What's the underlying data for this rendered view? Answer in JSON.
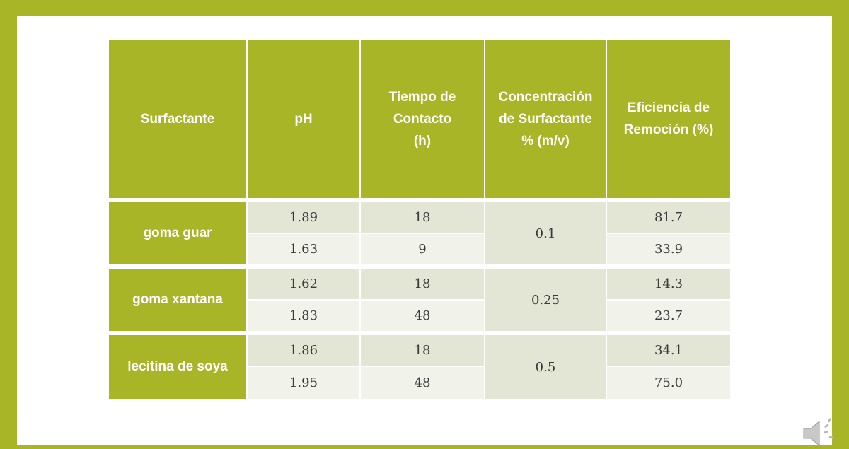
{
  "table": {
    "headers": [
      "Surfactante",
      "pH",
      "Tiempo de Contacto (h)",
      "Concentración de Surfactante % (m/v)",
      "Eficiencia de Remoción (%)"
    ],
    "header_lines": [
      [
        "Surfactante"
      ],
      [
        "pH"
      ],
      [
        "Tiempo de",
        "Contacto",
        "(h)"
      ],
      [
        "Concentración",
        "de Surfactante",
        "% (m/v)"
      ],
      [
        "Eficiencia de",
        "Remoción (%)"
      ]
    ],
    "groups": [
      {
        "surfactante": "goma guar",
        "concentracion": "0.1",
        "rows": [
          {
            "ph": "1.89",
            "tiempo": "18",
            "eficiencia": "81.7"
          },
          {
            "ph": "1.63",
            "tiempo": "9",
            "eficiencia": "33.9"
          }
        ]
      },
      {
        "surfactante": "goma xantana",
        "concentracion": "0.25",
        "rows": [
          {
            "ph": "1.62",
            "tiempo": "18",
            "eficiencia": "14.3"
          },
          {
            "ph": "1.83",
            "tiempo": "48",
            "eficiencia": "23.7"
          }
        ]
      },
      {
        "surfactante": "lecitina de soya",
        "concentracion": "0.5",
        "rows": [
          {
            "ph": "1.86",
            "tiempo": "18",
            "eficiencia": "34.1"
          },
          {
            "ph": "1.95",
            "tiempo": "48",
            "eficiencia": "75.0"
          }
        ]
      }
    ]
  },
  "colors": {
    "frame": "#a7b526",
    "header": "#a7b526",
    "row_dark": "#e3e5d5",
    "row_light": "#f1f2ea"
  },
  "icons": {
    "audio": "speaker-icon"
  }
}
